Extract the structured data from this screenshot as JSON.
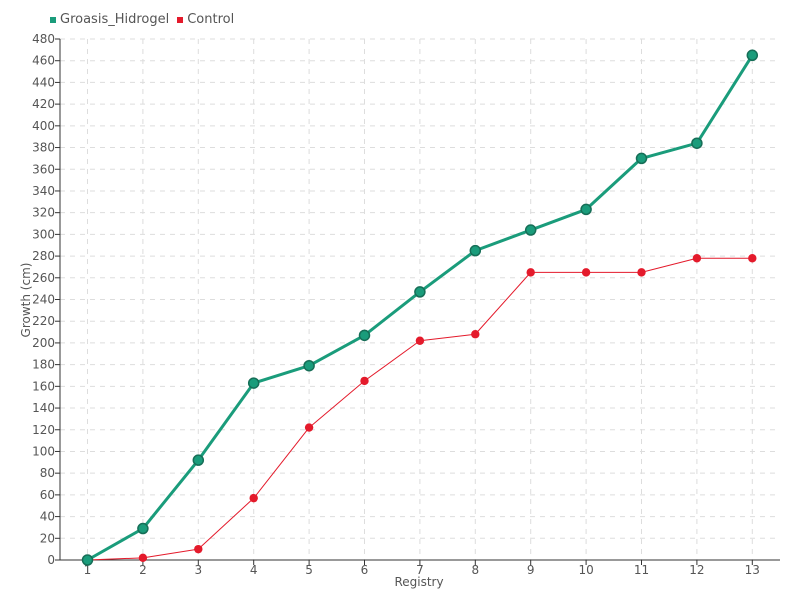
{
  "chart_data": {
    "type": "line",
    "x": [
      1,
      2,
      3,
      4,
      5,
      6,
      7,
      8,
      9,
      10,
      11,
      12,
      13
    ],
    "series": [
      {
        "name": "Groasis_Hidrogel",
        "color": "#1a9c7b",
        "values": [
          0,
          29,
          92,
          163,
          179,
          207,
          247,
          285,
          304,
          323,
          370,
          384,
          465
        ]
      },
      {
        "name": "Control",
        "color": "#e41a2b",
        "values": [
          0,
          2,
          10,
          57,
          122,
          165,
          202,
          208,
          265,
          265,
          265,
          278,
          278
        ]
      }
    ],
    "xlabel": "Registry",
    "ylabel": "Growth (cm)",
    "ylim": [
      0,
      480
    ],
    "y_ticks": [
      0,
      20,
      40,
      60,
      80,
      100,
      120,
      140,
      160,
      180,
      200,
      220,
      240,
      260,
      280,
      300,
      320,
      340,
      360,
      380,
      400,
      420,
      440,
      460,
      480
    ],
    "x_ticks": [
      "1",
      "2",
      "3",
      "4",
      "5",
      "6",
      "7",
      "8",
      "9",
      "10",
      "11",
      "12",
      "13"
    ],
    "grid": true,
    "legend_position": "top-left"
  }
}
